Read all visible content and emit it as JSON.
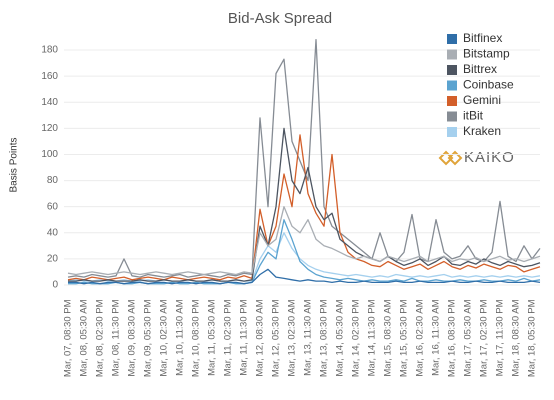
{
  "chart_data": {
    "type": "line",
    "title": "Bid-Ask Spread",
    "y_label": "Basis Points",
    "logo": "KAIKO",
    "categories": [
      "Mar, 07, 08:30 PM",
      null,
      "Mar, 08, 05:30 AM",
      null,
      "Mar, 08, 02:30 PM",
      null,
      "Mar, 08, 11:30 PM",
      null,
      "Mar, 09, 08:30 AM",
      null,
      "Mar, 09, 05:30 PM",
      null,
      "Mar, 10, 02:30 AM",
      null,
      "Mar, 10, 11:30 AM",
      null,
      "Mar, 10, 08:30 PM",
      null,
      "Mar, 11, 05:30 AM",
      null,
      "Mar, 11, 02:30 PM",
      null,
      "Mar, 11, 11:30 PM",
      null,
      "Mar, 12, 08:30 AM",
      null,
      "Mar, 12, 05:30 PM",
      null,
      "Mar, 13, 02:30 AM",
      null,
      "Mar, 13, 11:30 AM",
      null,
      "Mar, 13, 08:30 PM",
      null,
      "Mar, 14, 05:30 AM",
      null,
      "Mar, 14, 02:30 PM",
      null,
      "Mar, 14, 11:30 PM",
      null,
      "Mar, 15, 08:30 AM",
      null,
      "Mar, 15, 05:30 PM",
      null,
      "Mar, 16, 02:30 AM",
      null,
      "Mar, 16, 11:30 AM",
      null,
      "Mar, 16, 08:30 PM",
      null,
      "Mar, 17, 05:30 AM",
      null,
      "Mar, 17, 02:30 PM",
      null,
      "Mar, 17, 11:30 PM",
      null,
      "Mar, 18, 08:30 AM",
      null,
      "Mar, 18, 05:30 PM",
      null
    ],
    "series": [
      {
        "name": "Bitfinex",
        "color": "#2f6ea8",
        "values": [
          2,
          2,
          1,
          2,
          1,
          2,
          2,
          1,
          2,
          2,
          1,
          2,
          2,
          1,
          2,
          2,
          1,
          2,
          2,
          1,
          2,
          2,
          1,
          2,
          8,
          12,
          6,
          5,
          4,
          3,
          4,
          3,
          3,
          2,
          3,
          2,
          2,
          3,
          2,
          2,
          2,
          3,
          2,
          2,
          3,
          2,
          2,
          2,
          3,
          2,
          2,
          3,
          2,
          2,
          3,
          2,
          2,
          2,
          3,
          2
        ]
      },
      {
        "name": "Bitstamp",
        "color": "#a9aeb4",
        "values": [
          9,
          8,
          9,
          10,
          9,
          8,
          9,
          10,
          9,
          8,
          9,
          10,
          9,
          8,
          9,
          10,
          9,
          8,
          9,
          10,
          9,
          8,
          10,
          9,
          40,
          30,
          35,
          60,
          45,
          40,
          50,
          35,
          30,
          28,
          25,
          22,
          20,
          22,
          20,
          18,
          22,
          20,
          18,
          20,
          22,
          18,
          20,
          22,
          18,
          20,
          19,
          21,
          18,
          20,
          22,
          19,
          20,
          18,
          20,
          22
        ]
      },
      {
        "name": "Bittrex",
        "color": "#4d5561",
        "values": [
          3,
          3,
          4,
          3,
          3,
          4,
          3,
          3,
          3,
          4,
          3,
          3,
          4,
          3,
          3,
          4,
          3,
          3,
          4,
          3,
          3,
          4,
          3,
          4,
          45,
          30,
          60,
          120,
          80,
          70,
          90,
          60,
          50,
          55,
          35,
          30,
          25,
          22,
          20,
          18,
          22,
          18,
          15,
          17,
          20,
          15,
          18,
          22,
          16,
          15,
          18,
          16,
          20,
          17,
          15,
          18,
          16,
          14,
          15,
          17
        ]
      },
      {
        "name": "Coinbase",
        "color": "#5ba3d0",
        "values": [
          1,
          1,
          2,
          1,
          1,
          1,
          2,
          1,
          1,
          2,
          1,
          1,
          1,
          2,
          1,
          1,
          2,
          1,
          1,
          1,
          2,
          1,
          1,
          2,
          15,
          25,
          20,
          50,
          35,
          18,
          12,
          8,
          6,
          5,
          4,
          5,
          4,
          3,
          4,
          3,
          3,
          4,
          3,
          5,
          3,
          3,
          4,
          3,
          3,
          4,
          3,
          3,
          4,
          3,
          3,
          4,
          3,
          5,
          3,
          4
        ]
      },
      {
        "name": "Gemini",
        "color": "#d35f2a",
        "values": [
          4,
          5,
          4,
          6,
          5,
          4,
          5,
          6,
          4,
          5,
          6,
          5,
          4,
          6,
          5,
          4,
          5,
          6,
          5,
          4,
          6,
          5,
          7,
          5,
          58,
          30,
          45,
          85,
          60,
          115,
          70,
          55,
          45,
          100,
          40,
          25,
          20,
          18,
          15,
          14,
          18,
          15,
          12,
          14,
          16,
          12,
          15,
          18,
          14,
          12,
          15,
          13,
          16,
          14,
          12,
          15,
          14,
          10,
          12,
          14
        ]
      },
      {
        "name": "itBit",
        "color": "#868c94",
        "values": [
          6,
          7,
          6,
          8,
          7,
          6,
          7,
          20,
          7,
          6,
          8,
          7,
          6,
          7,
          8,
          6,
          7,
          8,
          7,
          6,
          8,
          7,
          9,
          8,
          128,
          60,
          162,
          173,
          110,
          95,
          80,
          188,
          60,
          45,
          40,
          35,
          30,
          25,
          20,
          40,
          22,
          18,
          25,
          54,
          20,
          18,
          50,
          25,
          20,
          22,
          30,
          20,
          18,
          25,
          64,
          22,
          18,
          30,
          20,
          28
        ]
      },
      {
        "name": "Kraken",
        "color": "#a5d0ee",
        "values": [
          3,
          4,
          3,
          3,
          4,
          3,
          3,
          4,
          3,
          3,
          4,
          3,
          4,
          3,
          3,
          4,
          3,
          3,
          4,
          3,
          3,
          4,
          3,
          3,
          20,
          30,
          25,
          40,
          28,
          20,
          15,
          12,
          10,
          9,
          8,
          7,
          8,
          7,
          6,
          7,
          6,
          8,
          7,
          6,
          7,
          6,
          7,
          8,
          6,
          7,
          6,
          7,
          6,
          7,
          6,
          7,
          6,
          7,
          6,
          7
        ]
      }
    ],
    "ylim": [
      -5,
      190
    ],
    "yticks": [
      0,
      20,
      40,
      60,
      80,
      100,
      120,
      140,
      160,
      180
    ],
    "grid": true,
    "legend": "top-right"
  }
}
